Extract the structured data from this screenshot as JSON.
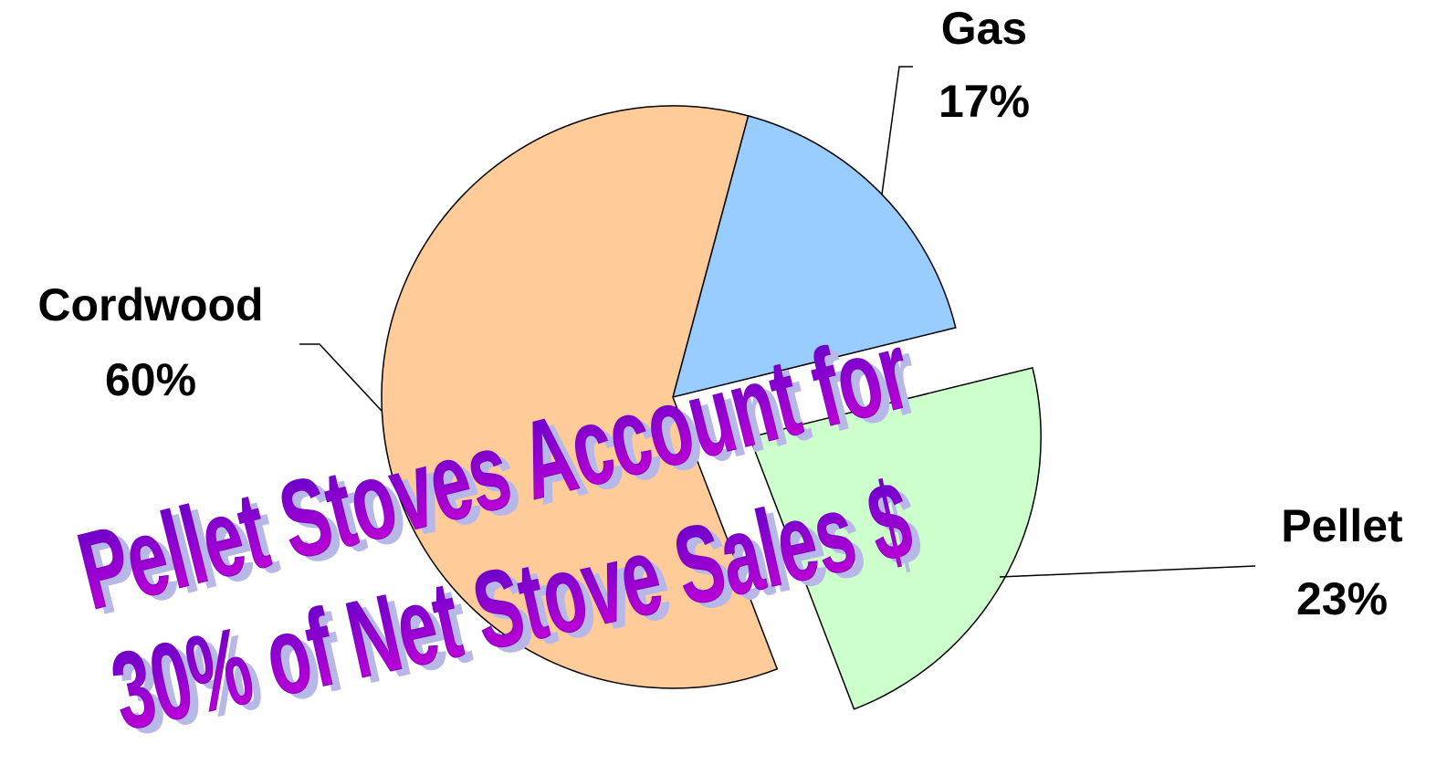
{
  "chart_data": {
    "type": "pie",
    "categories": [
      "Gas",
      "Pellet",
      "Cordwood"
    ],
    "values": [
      17,
      23,
      60
    ],
    "value_labels": [
      "17%",
      "23%",
      "60%"
    ],
    "colors": [
      "#99ccff",
      "#ccffcc",
      "#ffcc99"
    ],
    "exploded": [
      "Pellet"
    ],
    "annotations": [
      "Pellet Stoves Account for",
      "30% of Net Stove Sales $"
    ]
  }
}
